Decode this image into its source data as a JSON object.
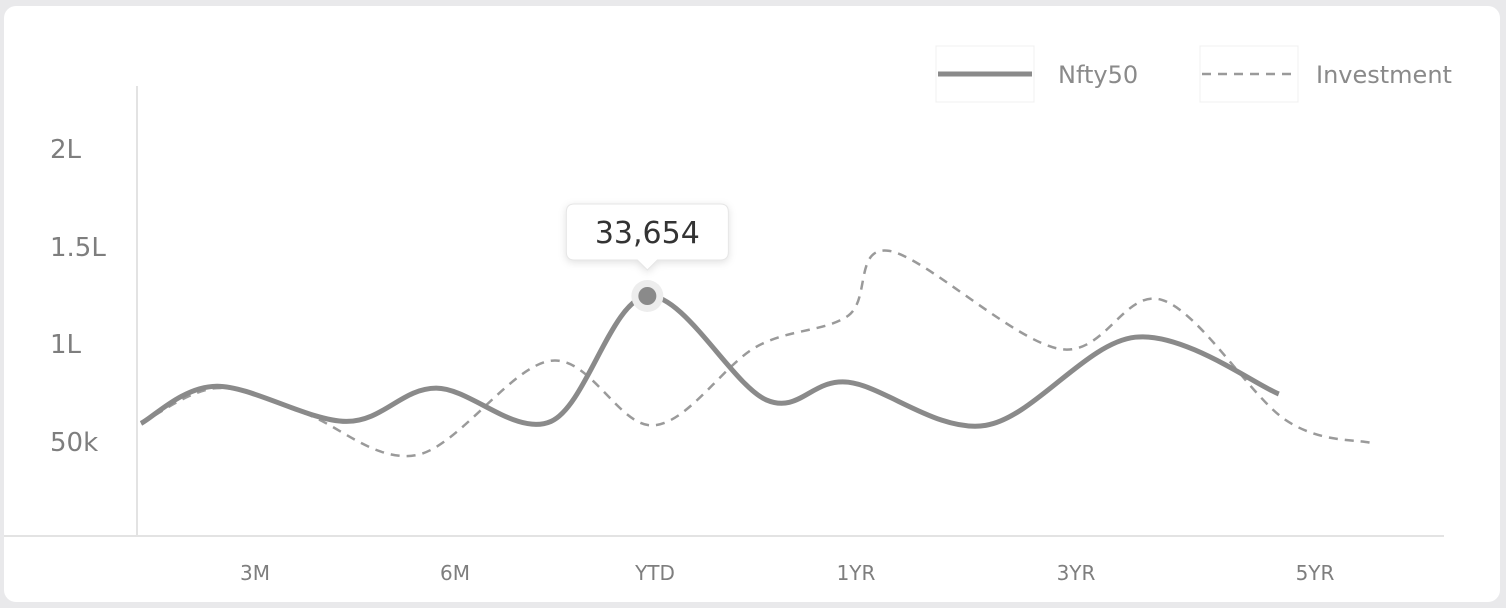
{
  "chart_data": {
    "type": "line",
    "x": [
      "3M",
      "6M",
      "YTD",
      "1YR",
      "3YR",
      "5YR"
    ],
    "y_ticks": [
      "2L",
      "1.5L",
      "1L",
      "50k"
    ],
    "legend": {
      "position": "top-right"
    },
    "tooltip": {
      "label": "33,654",
      "series": "Nfty50"
    },
    "series": [
      {
        "name": "Nfty50",
        "style": "solid",
        "color": "#8a8a8a",
        "points": [
          [
            0,
            0.6
          ],
          [
            0.37,
            0.79
          ],
          [
            1.0,
            0.61
          ],
          [
            1.44,
            0.78
          ],
          [
            2.0,
            0.61
          ],
          [
            2.47,
            1.25
          ],
          [
            3.05,
            0.72
          ],
          [
            3.45,
            0.81
          ],
          [
            4.12,
            0.59
          ],
          [
            4.85,
            1.04
          ],
          [
            5.55,
            0.75
          ]
        ]
      },
      {
        "name": "Investment",
        "style": "dashed",
        "color": "#9a9a9a",
        "points": [
          [
            0,
            0.6
          ],
          [
            0.37,
            0.78
          ],
          [
            0.8,
            0.65
          ],
          [
            1.35,
            0.44
          ],
          [
            2.0,
            0.92
          ],
          [
            2.5,
            0.59
          ],
          [
            3.0,
            0.99
          ],
          [
            3.45,
            1.15
          ],
          [
            3.65,
            1.48
          ],
          [
            4.48,
            0.98
          ],
          [
            4.98,
            1.23
          ],
          [
            5.58,
            0.62
          ],
          [
            6.0,
            0.5
          ]
        ]
      }
    ],
    "grid": false
  }
}
